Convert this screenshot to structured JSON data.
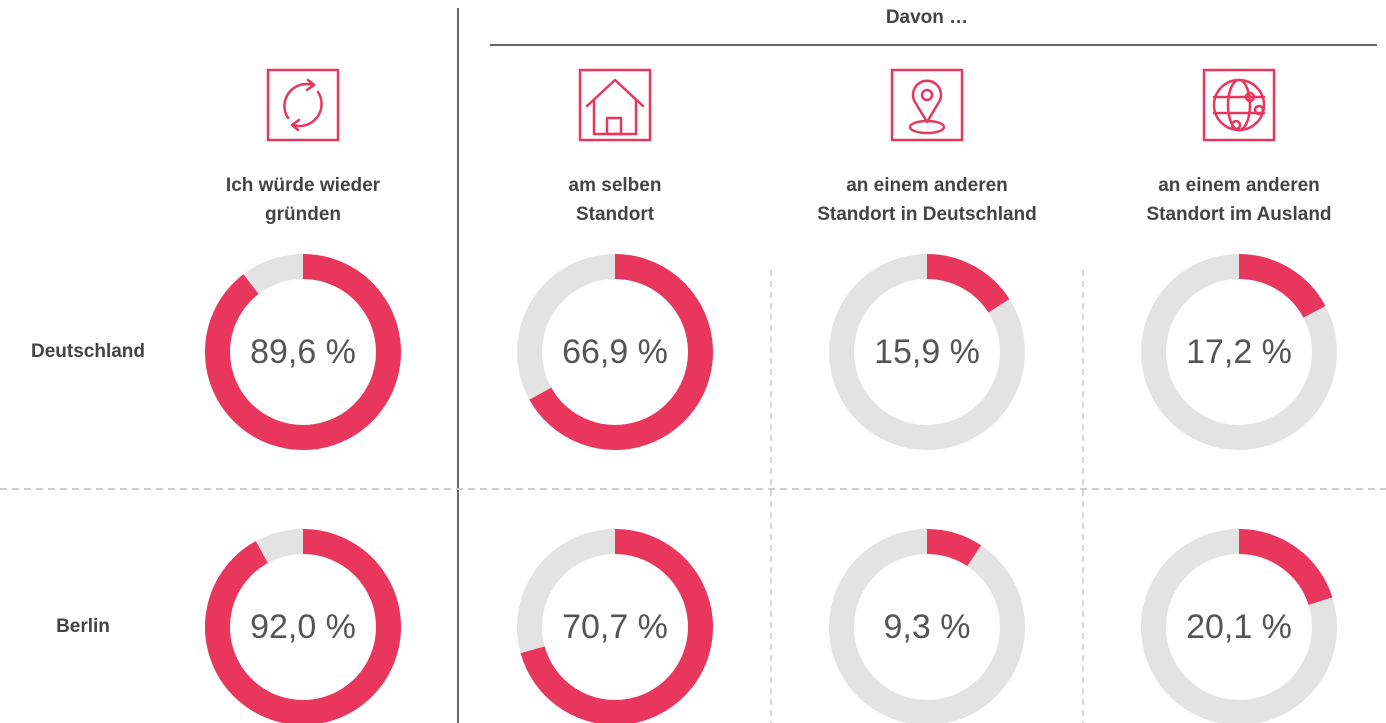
{
  "chart_data": {
    "type": "donut",
    "group_label": "Davon …",
    "columns": [
      [
        "Ich würde wieder",
        "gründen"
      ],
      [
        "am selben",
        "Standort"
      ],
      [
        "an einem anderen",
        "Standort in Deutschland"
      ],
      [
        "an einem anderen",
        "Standort im Ausland"
      ]
    ],
    "rows": [
      {
        "name": "Deutschland",
        "values": [
          89.6,
          66.9,
          15.9,
          17.2
        ],
        "value_labels": [
          "89,6 %",
          "66,9 %",
          "15,9 %",
          "17,2 %"
        ]
      },
      {
        "name": "Berlin",
        "values": [
          92.0,
          70.7,
          9.3,
          20.1
        ],
        "value_labels": [
          "92,0 %",
          "70,7 %",
          "9,3 %",
          "20,1 %"
        ]
      }
    ],
    "ylim": [
      0,
      100
    ],
    "color": "#e8365d",
    "track_color": "#e3e3e3"
  }
}
